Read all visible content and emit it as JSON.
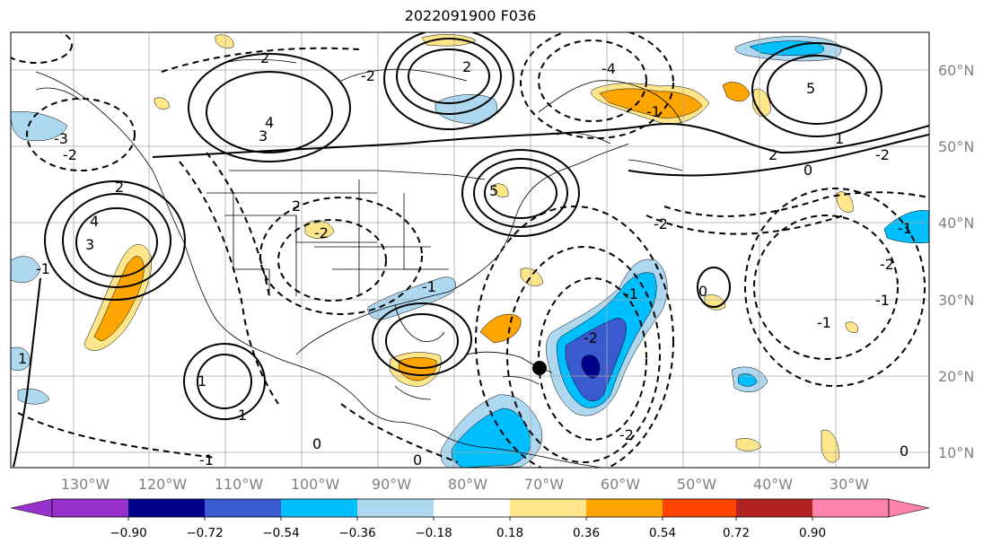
{
  "title": "2022091900 F036",
  "map": {
    "lon_labels": [
      "130°W",
      "120°W",
      "110°W",
      "100°W",
      "90°W",
      "80°W",
      "70°W",
      "60°W",
      "50°W",
      "40°W",
      "30°W"
    ],
    "lat_labels": [
      "60°N",
      "50°N",
      "40°N",
      "30°N",
      "20°N",
      "10°N"
    ],
    "contour_labels": [
      "3",
      "2",
      "4",
      "3",
      "2",
      "1",
      "0",
      "5",
      "5",
      "4",
      "2",
      "1",
      "2",
      "2",
      "1",
      "1",
      "-2",
      "-1",
      "-1",
      "-3",
      "-4",
      "-2",
      "-2",
      "-2",
      "0",
      "0",
      "-1",
      "-1",
      "-1",
      "-2",
      "-1",
      "-2",
      "0",
      "0",
      "-1",
      "-1",
      "-2",
      "-2"
    ],
    "marker": "black-dot"
  },
  "colorbar": {
    "ticks": [
      "−0.90",
      "−0.72",
      "−0.54",
      "−0.36",
      "−0.18",
      "0.18",
      "0.36",
      "0.54",
      "0.72",
      "0.90"
    ],
    "colors": [
      "#9932cc",
      "#00008b",
      "#3a5bd0",
      "#00bfff",
      "#add8f0",
      "#ffffff",
      "#ffe68a",
      "#ffa500",
      "#ff4500",
      "#b22222",
      "#ff82ab"
    ]
  }
}
